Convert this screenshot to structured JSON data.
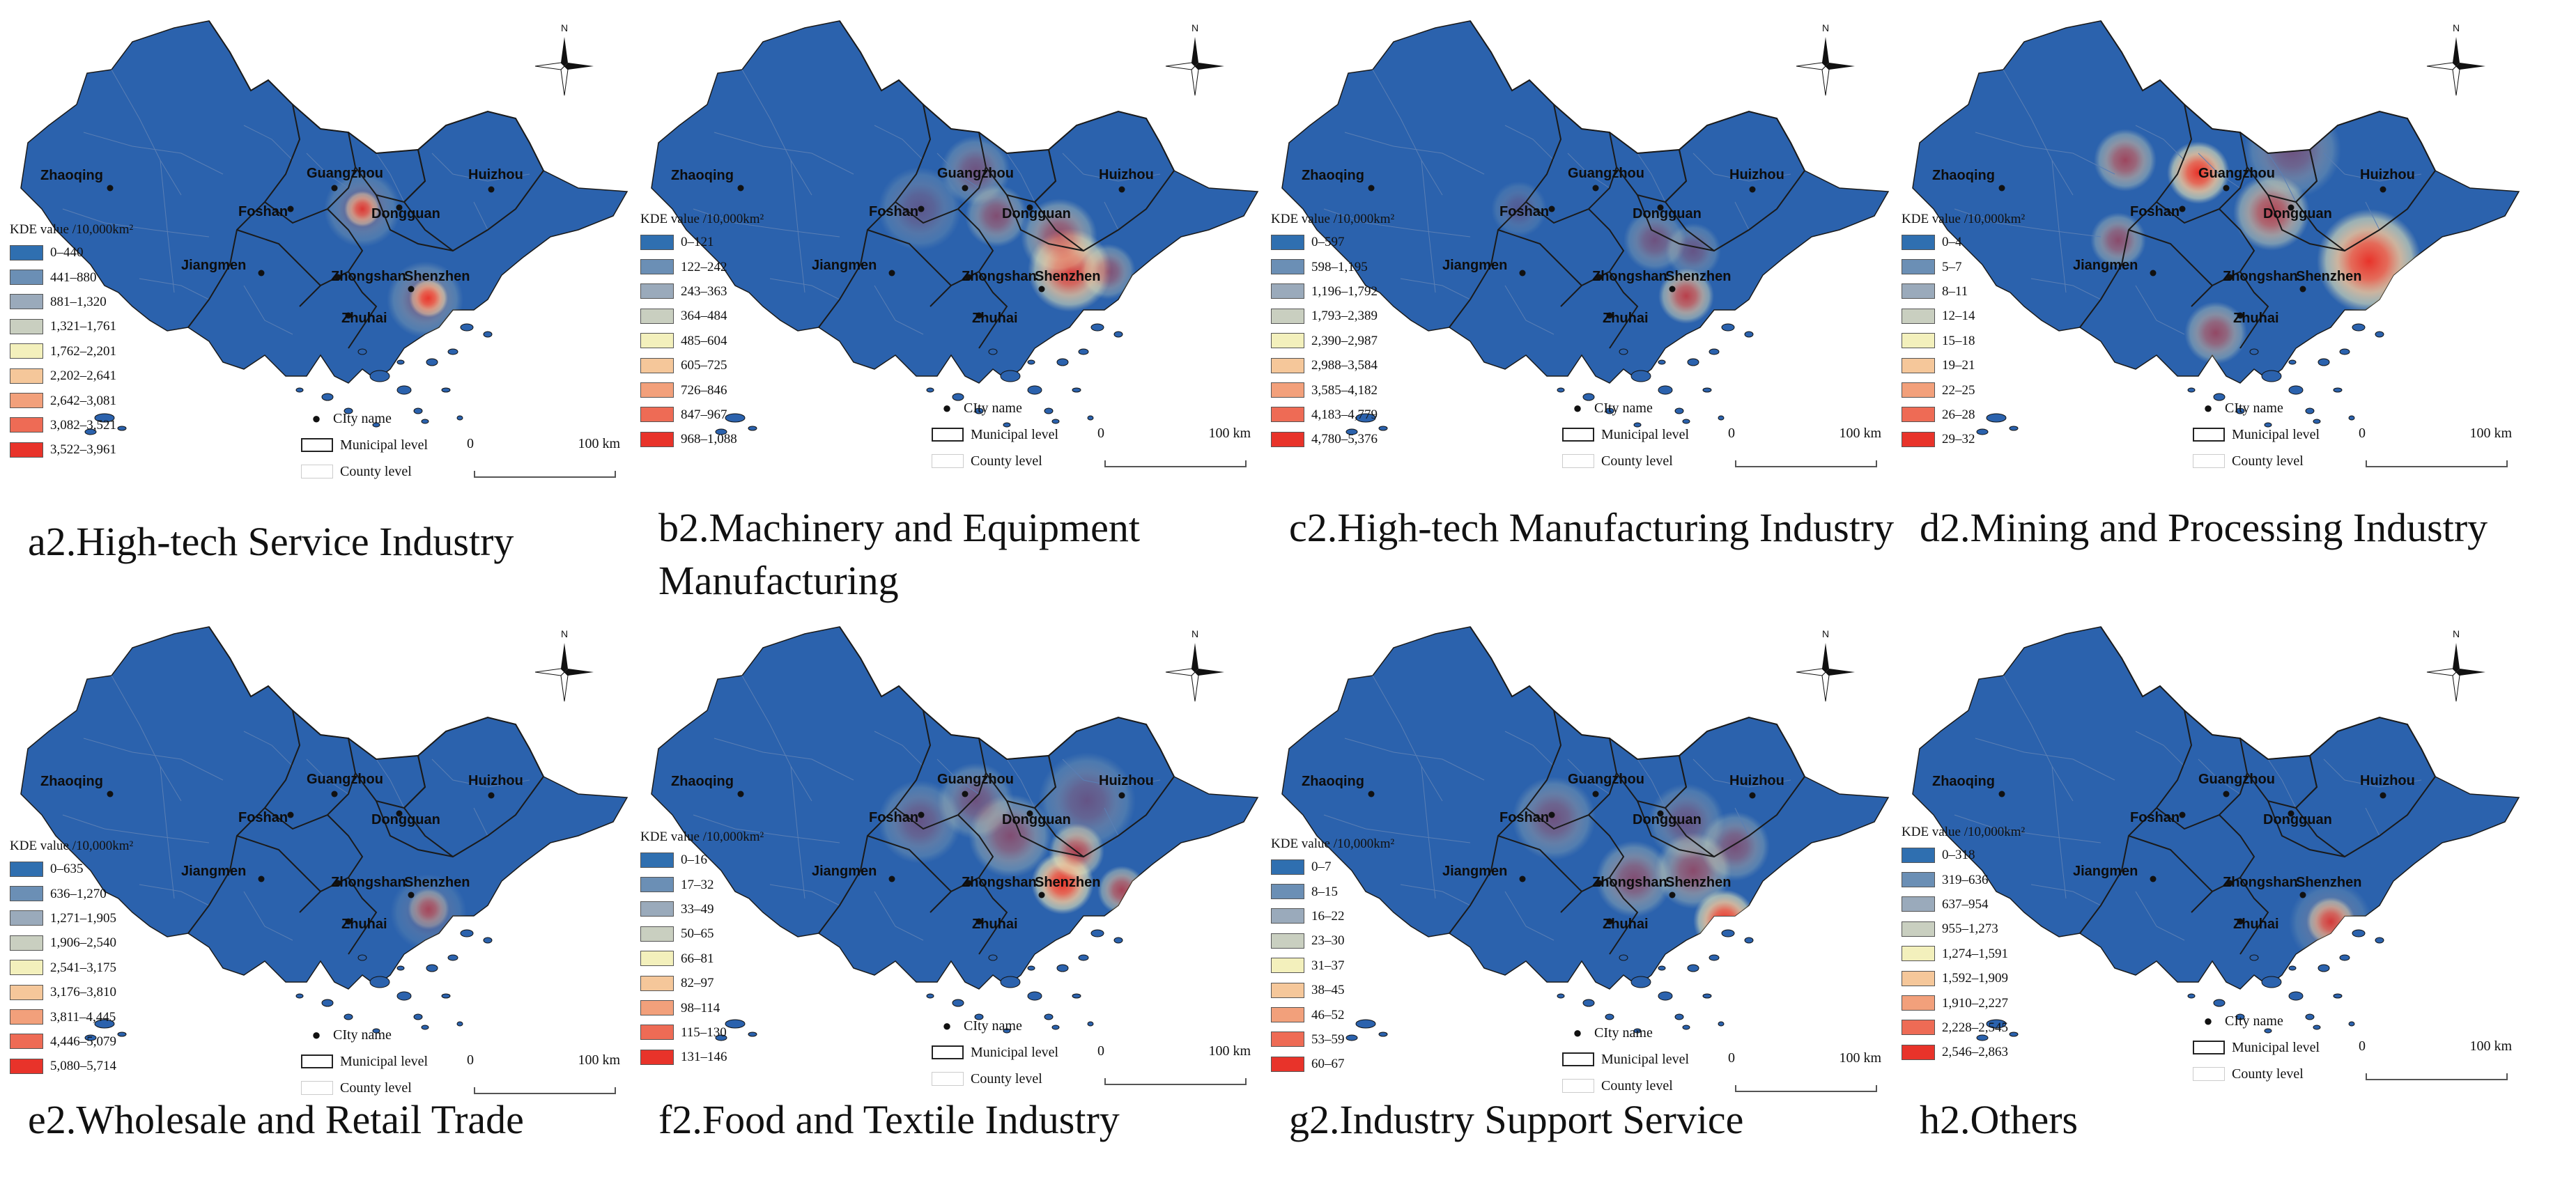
{
  "legend_title": "KDE value /10,000km²",
  "key": {
    "city_name": "CIty name",
    "municipal": "Municipal level",
    "county": "County level"
  },
  "scale": {
    "start": "0",
    "end": "100 km"
  },
  "north_label": "N",
  "cities": [
    "Zhaoqing",
    "Guangzhou",
    "Huizhou",
    "Foshan",
    "Dongguan",
    "Jiangmen",
    "Zhongshan",
    "Shenzhen",
    "Zhuhai"
  ],
  "legend_colors": [
    "#2f6fb0",
    "#6b8fb5",
    "#9aaabb",
    "#c9cfc0",
    "#f3f0bc",
    "#f5c79a",
    "#f2a07b",
    "#ee6b55",
    "#e8332a"
  ],
  "map_color": "#2b62ad",
  "panels": [
    {
      "id": "a2",
      "caption": "a2.High-tech Service Industry",
      "ranges": [
        "0–440",
        "441–880",
        "881–1,320",
        "1,321–1,761",
        "1,762–2,201",
        "2,202–2,641",
        "2,642–3,081",
        "3,082–3,521",
        "3,522–3,961"
      ]
    },
    {
      "id": "b2",
      "caption": "b2.Machinery and Equipment Manufacturing",
      "ranges": [
        "0–121",
        "122–242",
        "243–363",
        "364–484",
        "485–604",
        "605–725",
        "726–846",
        "847–967",
        "968–1,088"
      ]
    },
    {
      "id": "c2",
      "caption": "c2.High-tech Manufacturing Industry",
      "ranges": [
        "0–597",
        "598–1,195",
        "1,196–1,792",
        "1,793–2,389",
        "2,390–2,987",
        "2,988–3,584",
        "3,585–4,182",
        "4,183–4,779",
        "4,780–5,376"
      ]
    },
    {
      "id": "d2",
      "caption": "d2.Mining and Processing Industry",
      "ranges": [
        "0–4",
        "5–7",
        "8–11",
        "12–14",
        "15–18",
        "19–21",
        "22–25",
        "26–28",
        "29–32"
      ]
    },
    {
      "id": "e2",
      "caption": "e2.Wholesale and Retail Trade",
      "ranges": [
        "0–635",
        "636–1,270",
        "1,271–1,905",
        "1,906–2,540",
        "2,541–3,175",
        "3,176–3,810",
        "3,811–4,445",
        "4,446–5,079",
        "5,080–5,714"
      ]
    },
    {
      "id": "f2",
      "caption": "f2.Food and Textile Industry",
      "ranges": [
        "0–16",
        "17–32",
        "33–49",
        "50–65",
        "66–81",
        "82–97",
        "98–114",
        "115–130",
        "131–146"
      ]
    },
    {
      "id": "g2",
      "caption": "g2.Industry Support Service",
      "ranges": [
        "0–7",
        "8–15",
        "16–22",
        "23–30",
        "31–37",
        "38–45",
        "46–52",
        "53–59",
        "60–67"
      ]
    },
    {
      "id": "h2",
      "caption": "h2.Others",
      "ranges": [
        "0–318",
        "319–636",
        "637–954",
        "955–1,273",
        "1,274–1,591",
        "1,592–1,909",
        "1,910–2,227",
        "2,228–2,545",
        "2,546–2,863"
      ]
    }
  ]
}
